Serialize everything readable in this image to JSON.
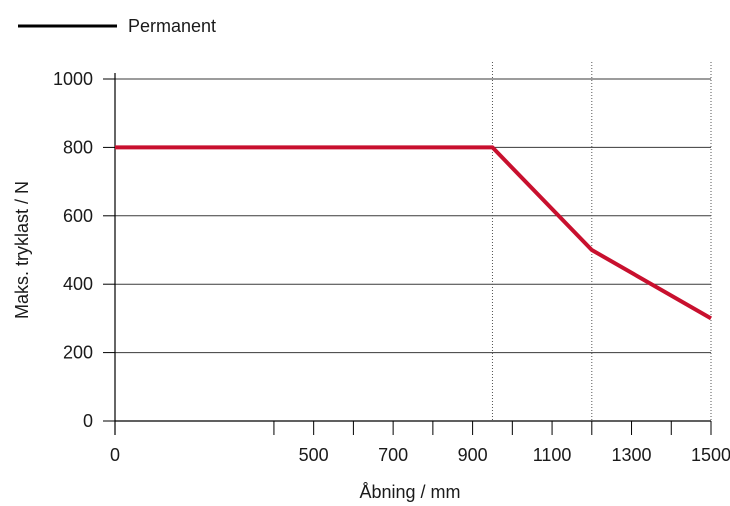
{
  "chart_data": {
    "type": "line",
    "xlabel": "Åbning / mm",
    "ylabel": "Maks. tryklast / N",
    "x_ticks": [
      0,
      500,
      700,
      900,
      1100,
      1300,
      1500
    ],
    "y_ticks": [
      0,
      200,
      400,
      600,
      800,
      1000
    ],
    "ylim": [
      0,
      1000
    ],
    "xlim": [
      0,
      1500
    ],
    "grid": "horizontal",
    "vertical_reference_lines": [
      950,
      1200,
      1500
    ],
    "legend_position": "top-left",
    "series": [
      {
        "name": "Permanent",
        "color": "#c8102e",
        "x": [
          0,
          950,
          1200,
          1500
        ],
        "y": [
          800,
          800,
          500,
          300
        ]
      }
    ],
    "legend_color": "#000000"
  }
}
